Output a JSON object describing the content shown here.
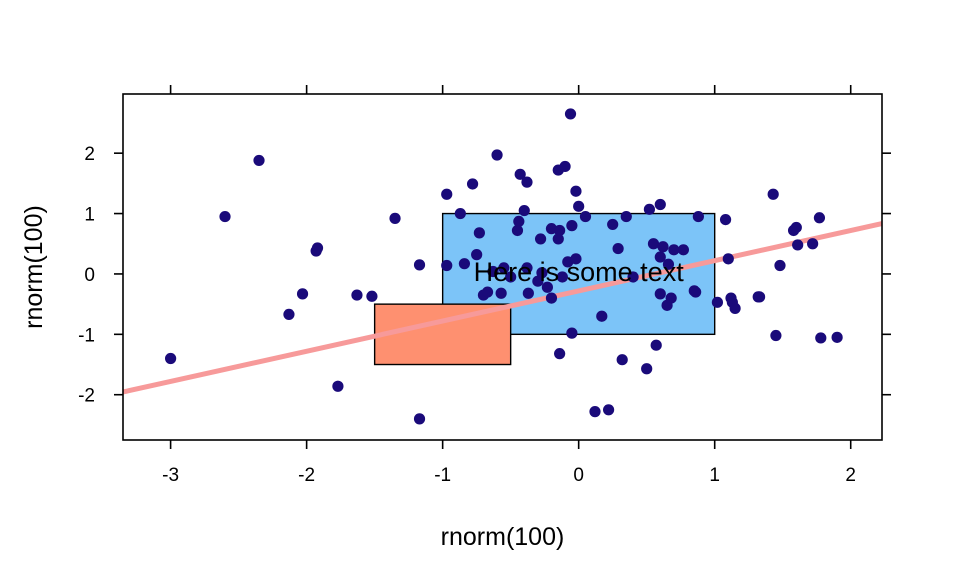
{
  "chart_data": {
    "type": "scatter",
    "xlabel": "rnorm(100)",
    "ylabel": "rnorm(100)",
    "xlim": [
      -3.35,
      2.23
    ],
    "ylim": [
      -2.75,
      2.98
    ],
    "x_ticks": [
      -3,
      -2,
      -1,
      0,
      1,
      2
    ],
    "x_tick_labels": [
      "-3",
      "-2",
      "-1",
      "0",
      "1",
      "2"
    ],
    "y_ticks": [
      -2,
      -1,
      0,
      1,
      2
    ],
    "y_tick_labels": [
      "-2",
      "-1",
      "0",
      "1",
      "2"
    ],
    "grid": false,
    "point_color": "#1a0a7a",
    "line": {
      "slope": 0.5,
      "intercept": -0.28,
      "color": "#f79a9a"
    },
    "rectangles": [
      {
        "x0": -1.0,
        "x1": 1.0,
        "y0": -1.0,
        "y1": 1.0,
        "fill": "#7cc4f8"
      },
      {
        "x0": -1.5,
        "x1": -0.5,
        "y0": -1.5,
        "y1": -0.5,
        "fill": "#fe9070"
      }
    ],
    "annotation": {
      "text": "Here is some text",
      "x": 0.0,
      "y": 0.0
    },
    "points": [
      [
        -3.0,
        -1.4
      ],
      [
        -2.6,
        0.95
      ],
      [
        -2.35,
        1.88
      ],
      [
        -2.13,
        -0.67
      ],
      [
        -2.03,
        -0.33
      ],
      [
        -1.93,
        0.38
      ],
      [
        -1.92,
        0.43
      ],
      [
        -1.77,
        -1.86
      ],
      [
        -1.63,
        -0.35
      ],
      [
        -1.52,
        -0.37
      ],
      [
        -1.35,
        0.92
      ],
      [
        -1.17,
        0.15
      ],
      [
        -1.17,
        -2.4
      ],
      [
        -0.97,
        1.32
      ],
      [
        -0.97,
        0.14
      ],
      [
        -0.87,
        1.0
      ],
      [
        -0.84,
        0.17
      ],
      [
        -0.78,
        1.49
      ],
      [
        -0.75,
        0.32
      ],
      [
        -0.73,
        0.68
      ],
      [
        -0.7,
        -0.35
      ],
      [
        -0.67,
        -0.3
      ],
      [
        -0.63,
        0.04
      ],
      [
        -0.6,
        1.97
      ],
      [
        -0.57,
        -0.32
      ],
      [
        -0.55,
        0.1
      ],
      [
        -0.5,
        -0.05
      ],
      [
        -0.45,
        0.72
      ],
      [
        -0.44,
        0.87
      ],
      [
        -0.43,
        1.65
      ],
      [
        -0.4,
        1.05
      ],
      [
        -0.38,
        1.52
      ],
      [
        -0.38,
        0.1
      ],
      [
        -0.37,
        -0.32
      ],
      [
        -0.3,
        -0.12
      ],
      [
        -0.28,
        0.58
      ],
      [
        -0.27,
        0.02
      ],
      [
        -0.23,
        -0.22
      ],
      [
        -0.2,
        -0.4
      ],
      [
        -0.2,
        0.75
      ],
      [
        -0.15,
        1.72
      ],
      [
        -0.15,
        0.58
      ],
      [
        -0.14,
        0.72
      ],
      [
        -0.14,
        -1.32
      ],
      [
        -0.12,
        -0.05
      ],
      [
        -0.1,
        1.78
      ],
      [
        -0.08,
        0.2
      ],
      [
        -0.06,
        2.65
      ],
      [
        -0.05,
        0.8
      ],
      [
        -0.05,
        -0.98
      ],
      [
        -0.02,
        1.37
      ],
      [
        -0.02,
        0.25
      ],
      [
        0.0,
        1.12
      ],
      [
        0.05,
        0.95
      ],
      [
        0.12,
        -2.28
      ],
      [
        0.17,
        -0.7
      ],
      [
        0.22,
        -2.25
      ],
      [
        0.25,
        0.82
      ],
      [
        0.29,
        0.42
      ],
      [
        0.32,
        -1.42
      ],
      [
        0.35,
        0.95
      ],
      [
        0.4,
        -0.05
      ],
      [
        0.52,
        1.07
      ],
      [
        0.5,
        -1.57
      ],
      [
        0.55,
        0.5
      ],
      [
        0.57,
        -1.18
      ],
      [
        0.6,
        1.15
      ],
      [
        0.6,
        0.28
      ],
      [
        0.6,
        -0.33
      ],
      [
        0.62,
        0.45
      ],
      [
        0.65,
        -0.52
      ],
      [
        0.66,
        0.16
      ],
      [
        0.68,
        -0.4
      ],
      [
        0.7,
        0.4
      ],
      [
        0.77,
        0.4
      ],
      [
        0.85,
        -0.28
      ],
      [
        0.86,
        -0.3
      ],
      [
        0.88,
        0.95
      ],
      [
        1.02,
        -0.47
      ],
      [
        1.08,
        0.9
      ],
      [
        1.1,
        0.25
      ],
      [
        1.12,
        -0.4
      ],
      [
        1.13,
        -0.47
      ],
      [
        1.15,
        -0.57
      ],
      [
        1.32,
        -0.38
      ],
      [
        1.33,
        -0.38
      ],
      [
        1.43,
        1.32
      ],
      [
        1.45,
        -1.02
      ],
      [
        1.48,
        0.14
      ],
      [
        1.58,
        0.72
      ],
      [
        1.6,
        0.77
      ],
      [
        1.61,
        0.48
      ],
      [
        1.72,
        0.5
      ],
      [
        1.77,
        0.93
      ],
      [
        1.78,
        -1.06
      ],
      [
        1.9,
        -1.05
      ]
    ]
  }
}
